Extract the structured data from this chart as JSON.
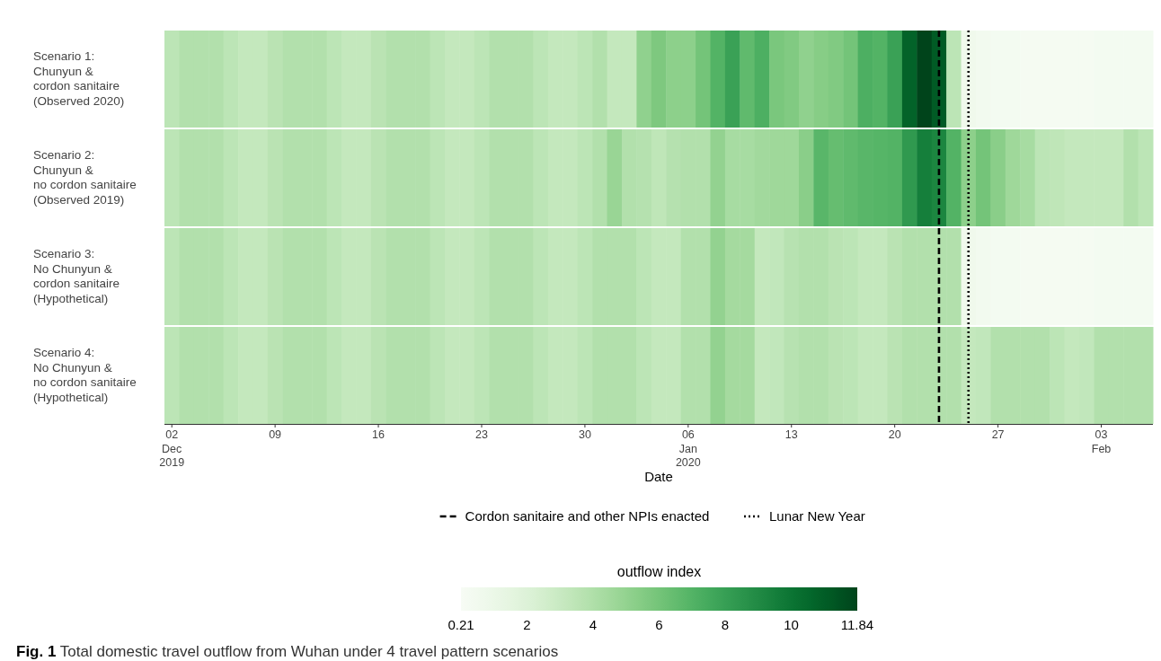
{
  "chart_data": {
    "type": "heatmap",
    "xlabel": "Date",
    "clabel": "outflow index",
    "legend": "bottom",
    "x": [
      "2019-12-02",
      "2019-12-03",
      "2019-12-04",
      "2019-12-05",
      "2019-12-06",
      "2019-12-07",
      "2019-12-08",
      "2019-12-09",
      "2019-12-10",
      "2019-12-11",
      "2019-12-12",
      "2019-12-13",
      "2019-12-14",
      "2019-12-15",
      "2019-12-16",
      "2019-12-17",
      "2019-12-18",
      "2019-12-19",
      "2019-12-20",
      "2019-12-21",
      "2019-12-22",
      "2019-12-23",
      "2019-12-24",
      "2019-12-25",
      "2019-12-26",
      "2019-12-27",
      "2019-12-28",
      "2019-12-29",
      "2019-12-30",
      "2019-12-31",
      "2020-01-01",
      "2020-01-02",
      "2020-01-03",
      "2020-01-04",
      "2020-01-05",
      "2020-01-06",
      "2020-01-07",
      "2020-01-08",
      "2020-01-09",
      "2020-01-10",
      "2020-01-11",
      "2020-01-12",
      "2020-01-13",
      "2020-01-14",
      "2020-01-15",
      "2020-01-16",
      "2020-01-17",
      "2020-01-18",
      "2020-01-19",
      "2020-01-20",
      "2020-01-21",
      "2020-01-22",
      "2020-01-23",
      "2020-01-24",
      "2020-01-25",
      "2020-01-26",
      "2020-01-27",
      "2020-01-28",
      "2020-01-29",
      "2020-01-30",
      "2020-01-31",
      "2020-02-01",
      "2020-02-02",
      "2020-02-03",
      "2020-02-04",
      "2020-02-05",
      "2020-02-06"
    ],
    "xlim": [
      "2019-12-01T12:00",
      "2020-02-06T12:00"
    ],
    "xticks": [
      {
        "value": "2019-12-02",
        "label": "02\nDec\n2019"
      },
      {
        "value": "2019-12-09",
        "label": "09"
      },
      {
        "value": "2019-12-16",
        "label": "16"
      },
      {
        "value": "2019-12-23",
        "label": "23"
      },
      {
        "value": "2019-12-30",
        "label": "30"
      },
      {
        "value": "2020-01-06",
        "label": "06\nJan\n2020"
      },
      {
        "value": "2020-01-13",
        "label": "13"
      },
      {
        "value": "2020-01-20",
        "label": "20"
      },
      {
        "value": "2020-01-27",
        "label": "27"
      },
      {
        "value": "2020-02-03",
        "label": "03\nFeb"
      }
    ],
    "y_categories": [
      "Scenario 1:\nChunyun &\ncordon sanitaire\n(Observed 2020)",
      "Scenario 2:\nChunyun &\nno cordon sanitaire\n(Observed 2019)",
      "Scenario 3:\nNo Chunyun &\ncordon sanitaire\n(Hypothetical)",
      "Scenario 4:\nNo Chunyun &\nno cordon sanitaire\n(Hypothetical)"
    ],
    "cells": [
      [
        3.5,
        3.9,
        3.9,
        3.9,
        3.5,
        3.2,
        3.2,
        3.6,
        3.9,
        3.9,
        3.9,
        3.5,
        3.2,
        3.2,
        3.6,
        3.9,
        3.9,
        3.9,
        3.5,
        3.2,
        3.2,
        3.5,
        3.9,
        3.9,
        3.9,
        3.5,
        3.2,
        3.2,
        3.5,
        3.9,
        3.2,
        3.2,
        5.1,
        5.7,
        5.2,
        5.2,
        6.0,
        7.0,
        7.9,
        6.6,
        7.2,
        5.8,
        5.6,
        5.1,
        5.4,
        5.6,
        6.0,
        7.2,
        7.0,
        7.9,
        10.7,
        11.84,
        11.0,
        3.5,
        0.8,
        0.6,
        0.5,
        0.5,
        0.4,
        0.4,
        0.4,
        0.4,
        0.4,
        0.5,
        0.5,
        0.5,
        0.5
      ],
      [
        3.5,
        3.9,
        3.9,
        3.9,
        3.5,
        3.2,
        3.2,
        3.6,
        3.9,
        3.9,
        3.9,
        3.5,
        3.2,
        3.2,
        3.6,
        3.9,
        3.9,
        3.9,
        3.5,
        3.2,
        3.2,
        3.5,
        3.9,
        3.9,
        3.9,
        3.5,
        3.2,
        3.2,
        3.5,
        3.9,
        4.8,
        3.9,
        3.8,
        3.4,
        3.8,
        3.9,
        3.9,
        5.0,
        4.3,
        4.3,
        4.5,
        4.6,
        4.6,
        5.3,
        6.8,
        6.4,
        6.6,
        6.8,
        6.9,
        7.0,
        8.3,
        9.5,
        9.2,
        7.0,
        5.2,
        6.0,
        5.3,
        4.6,
        4.3,
        3.5,
        3.4,
        3.2,
        3.2,
        3.2,
        3.2,
        3.9,
        3.5
      ],
      [
        3.5,
        3.9,
        3.9,
        3.9,
        3.5,
        3.2,
        3.2,
        3.6,
        3.9,
        3.9,
        3.9,
        3.5,
        3.2,
        3.2,
        3.6,
        3.9,
        3.9,
        3.9,
        3.5,
        3.2,
        3.2,
        3.5,
        3.9,
        3.9,
        3.9,
        3.5,
        3.2,
        3.2,
        3.5,
        3.9,
        3.9,
        3.9,
        3.5,
        3.2,
        3.2,
        3.9,
        3.9,
        5.0,
        4.4,
        4.4,
        3.2,
        3.3,
        3.7,
        3.9,
        3.9,
        3.6,
        3.5,
        3.2,
        3.2,
        3.6,
        3.9,
        3.9,
        3.9,
        3.9,
        0.8,
        0.6,
        0.5,
        0.5,
        0.4,
        0.4,
        0.4,
        0.4,
        0.4,
        0.5,
        0.5,
        0.5,
        0.5
      ],
      [
        3.5,
        3.9,
        3.9,
        3.9,
        3.5,
        3.2,
        3.2,
        3.6,
        3.9,
        3.9,
        3.9,
        3.5,
        3.2,
        3.2,
        3.6,
        3.9,
        3.9,
        3.9,
        3.5,
        3.2,
        3.2,
        3.5,
        3.9,
        3.9,
        3.9,
        3.5,
        3.2,
        3.2,
        3.5,
        3.9,
        3.9,
        3.9,
        3.5,
        3.2,
        3.2,
        3.9,
        3.9,
        5.0,
        4.4,
        4.4,
        3.2,
        3.3,
        3.7,
        3.9,
        3.9,
        3.6,
        3.5,
        3.2,
        3.2,
        3.6,
        3.9,
        3.9,
        3.9,
        3.9,
        3.2,
        3.3,
        3.9,
        3.9,
        3.9,
        3.9,
        3.5,
        3.2,
        3.3,
        3.9,
        3.9,
        3.9,
        3.9
      ]
    ],
    "clim": [
      0.21,
      11.84
    ],
    "cticks": [
      0.21,
      2,
      4,
      6,
      8,
      10,
      11.84
    ],
    "ref_lines": [
      {
        "axis": "x",
        "value": "2020-01-23",
        "label": "Cordon sanitaire and other NPIs enacted",
        "color": "#000000",
        "line_style": "dashed"
      },
      {
        "axis": "x",
        "value": "2020-01-25",
        "label": "Lunar New Year",
        "color": "#000000",
        "line_style": "dotted"
      }
    ],
    "annotations": [
      "Fig. 1 Total domestic travel outflow from Wuhan under 4 travel pattern scenarios"
    ]
  }
}
